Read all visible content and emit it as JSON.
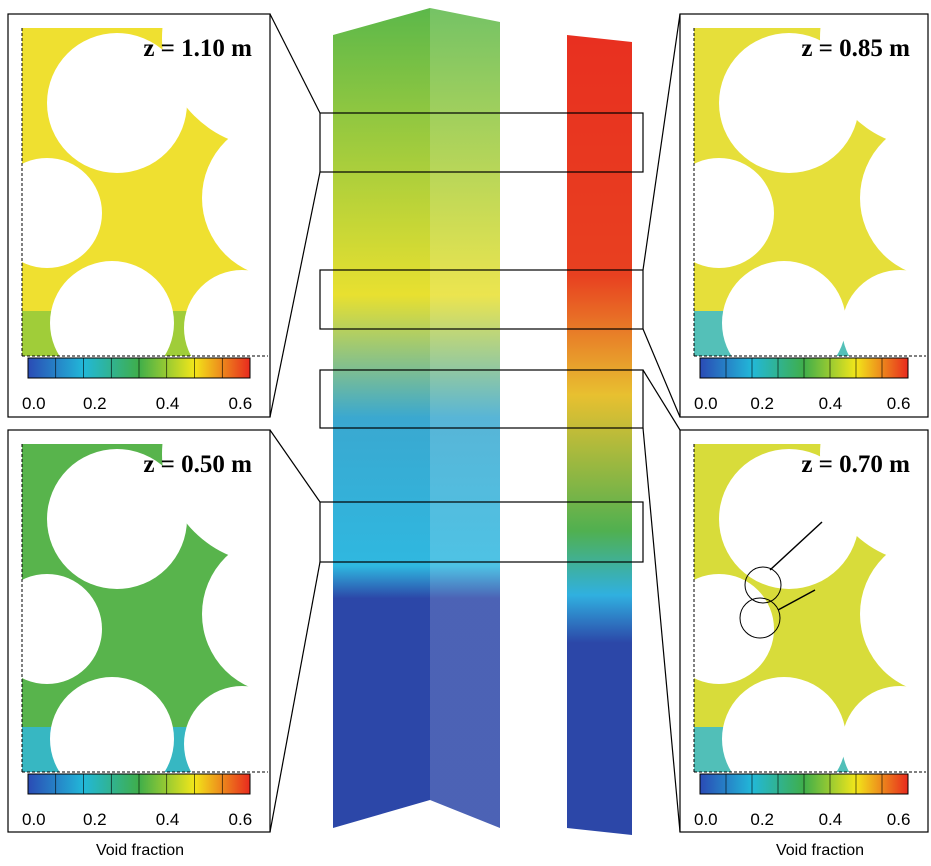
{
  "panels": [
    {
      "label": "z = 1.10 m",
      "ticks": [
        "0.0",
        "0.2",
        "0.4",
        "0.6"
      ]
    },
    {
      "label": "z = 0.85 m",
      "ticks": [
        "0.0",
        "0.2",
        "0.4",
        "0.6"
      ]
    },
    {
      "label": "z = 0.50 m",
      "ticks": [
        "0.0",
        "0.2",
        "0.4",
        "0.6"
      ]
    },
    {
      "label": "z = 0.70 m",
      "ticks": [
        "0.0",
        "0.2",
        "0.4",
        "0.6"
      ]
    }
  ],
  "captions": [
    "Void fraction",
    "Void fraction"
  ]
}
